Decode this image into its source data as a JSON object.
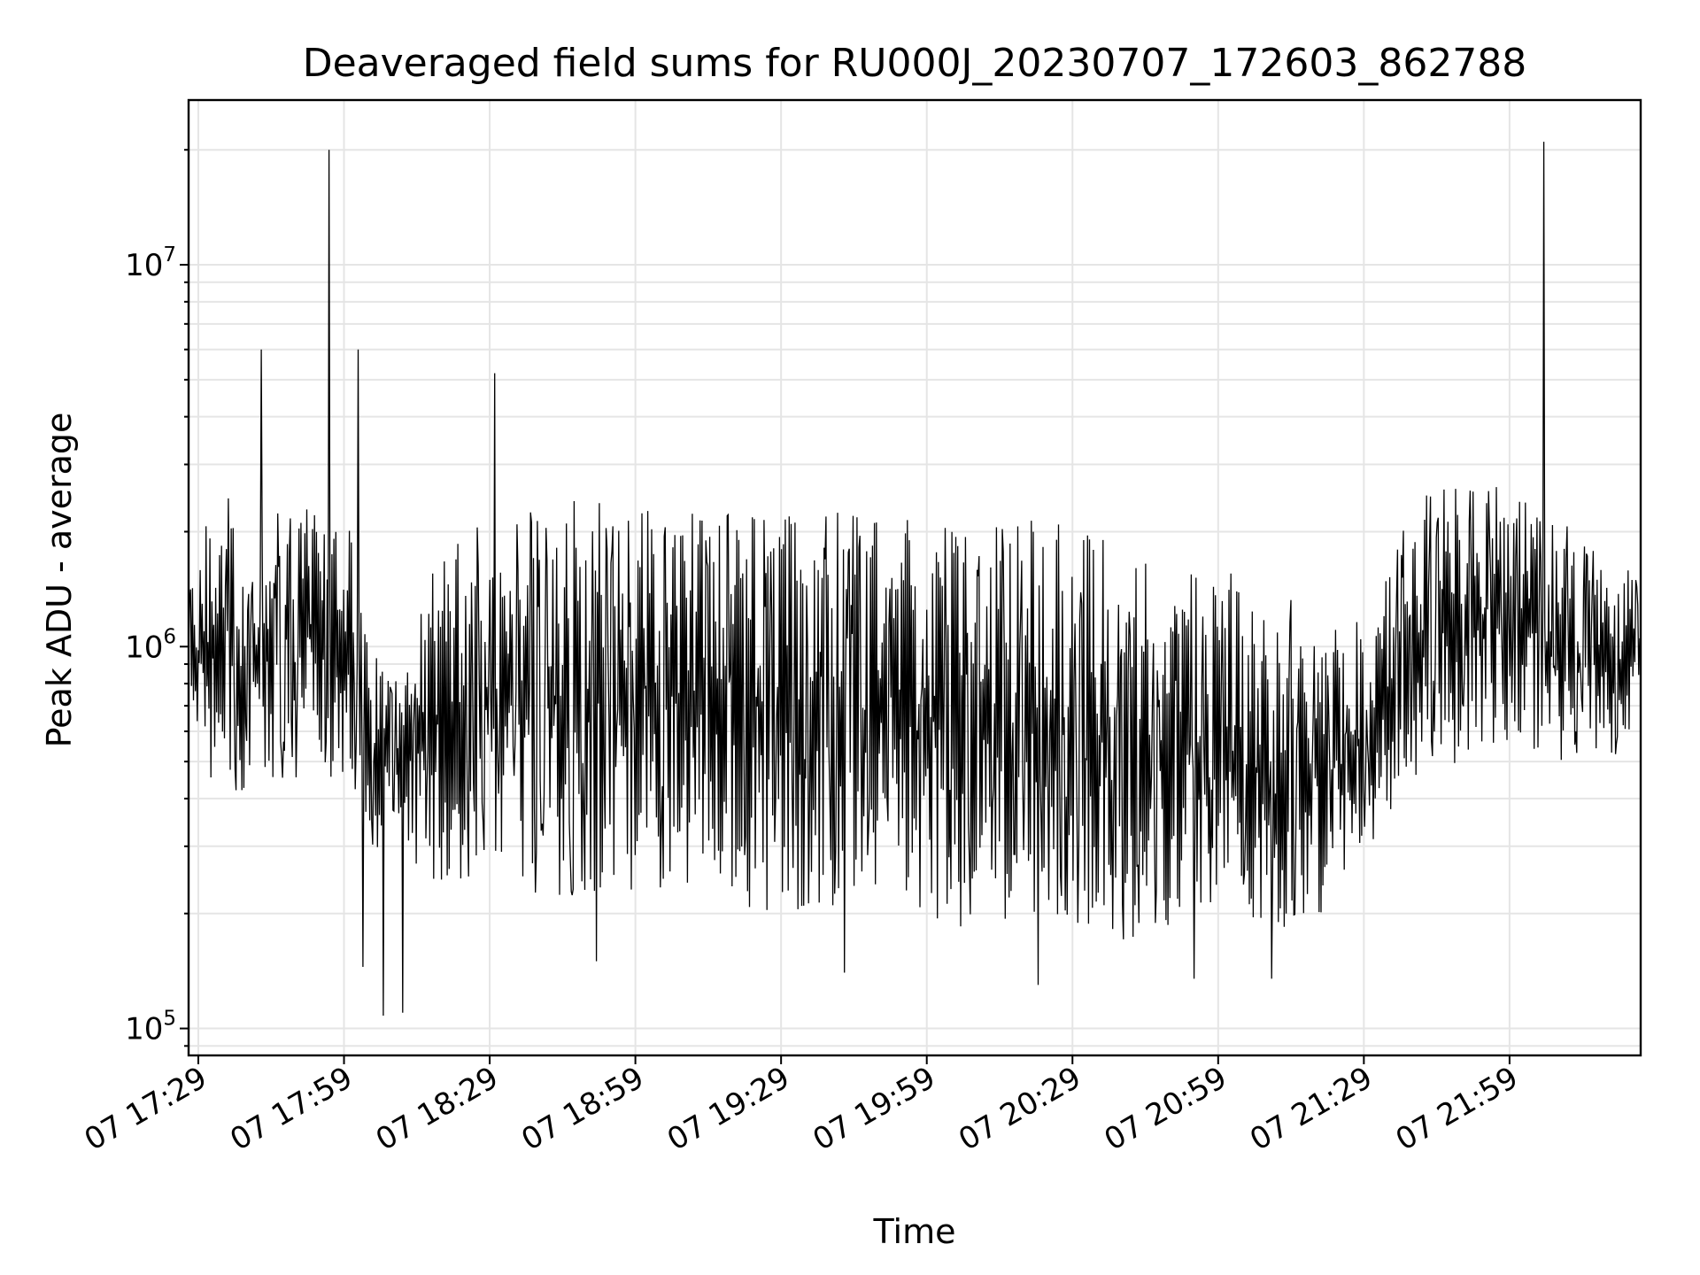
{
  "chart_data": {
    "type": "line",
    "title": "Deaveraged field sums for RU000J_20230707_172603_862788",
    "xlabel": "Time",
    "ylabel": "Peak ADU - average",
    "yscale": "log",
    "ylim": [
      85000,
      27000000
    ],
    "y_ticks": [
      {
        "value": 100000,
        "base": "10",
        "exp": "5"
      },
      {
        "value": 1000000,
        "base": "10",
        "exp": "6"
      },
      {
        "value": 10000000,
        "base": "10",
        "exp": "7"
      }
    ],
    "xlim": [
      "2023-07-07 17:27",
      "2023-07-07 22:26"
    ],
    "x_ticks": [
      {
        "value": "2023-07-07 17:29",
        "label": "07 17:29"
      },
      {
        "value": "2023-07-07 17:59",
        "label": "07 17:59"
      },
      {
        "value": "2023-07-07 18:29",
        "label": "07 18:29"
      },
      {
        "value": "2023-07-07 18:59",
        "label": "07 18:59"
      },
      {
        "value": "2023-07-07 19:29",
        "label": "07 19:29"
      },
      {
        "value": "2023-07-07 19:59",
        "label": "07 19:59"
      },
      {
        "value": "2023-07-07 20:29",
        "label": "07 20:29"
      },
      {
        "value": "2023-07-07 20:59",
        "label": "07 20:59"
      },
      {
        "value": "2023-07-07 21:29",
        "label": "07 21:29"
      },
      {
        "value": "2023-07-07 21:59",
        "label": "07 21:59"
      }
    ],
    "grid": true,
    "series": [
      {
        "color": "#000000",
        "envelope": [
          {
            "t": "2023-07-07 17:28",
            "low": 450000,
            "high": 2000000
          },
          {
            "t": "2023-07-07 17:35",
            "low": 420000,
            "high": 2500000
          },
          {
            "t": "2023-07-07 17:40",
            "low": 420000,
            "high": 1600000
          },
          {
            "t": "2023-07-07 17:45",
            "low": 450000,
            "high": 2400000
          },
          {
            "t": "2023-07-07 17:50",
            "low": 450000,
            "high": 2500000
          },
          {
            "t": "2023-07-07 17:55",
            "low": 450000,
            "high": 2600000
          },
          {
            "t": "2023-07-07 18:00",
            "low": 450000,
            "high": 2200000
          },
          {
            "t": "2023-07-07 18:05",
            "low": 300000,
            "high": 1000000
          },
          {
            "t": "2023-07-07 18:10",
            "low": 280000,
            "high": 900000
          },
          {
            "t": "2023-07-07 18:15",
            "low": 240000,
            "high": 1500000
          },
          {
            "t": "2023-07-07 18:20",
            "low": 240000,
            "high": 1800000
          },
          {
            "t": "2023-07-07 18:25",
            "low": 240000,
            "high": 2000000
          },
          {
            "t": "2023-07-07 18:30",
            "low": 240000,
            "high": 2200000
          },
          {
            "t": "2023-07-07 18:40",
            "low": 220000,
            "high": 2500000
          },
          {
            "t": "2023-07-07 18:50",
            "low": 220000,
            "high": 2500000
          },
          {
            "t": "2023-07-07 19:00",
            "low": 220000,
            "high": 2500000
          },
          {
            "t": "2023-07-07 19:10",
            "low": 210000,
            "high": 2500000
          },
          {
            "t": "2023-07-07 19:20",
            "low": 210000,
            "high": 2400000
          },
          {
            "t": "2023-07-07 19:30",
            "low": 200000,
            "high": 2300000
          },
          {
            "t": "2023-07-07 19:40",
            "low": 190000,
            "high": 2300000
          },
          {
            "t": "2023-07-07 19:50",
            "low": 190000,
            "high": 2200000
          },
          {
            "t": "2023-07-07 20:00",
            "low": 190000,
            "high": 2200000
          },
          {
            "t": "2023-07-07 20:10",
            "low": 180000,
            "high": 2300000
          },
          {
            "t": "2023-07-07 20:20",
            "low": 180000,
            "high": 2200000
          },
          {
            "t": "2023-07-07 20:30",
            "low": 180000,
            "high": 2200000
          },
          {
            "t": "2023-07-07 20:40",
            "low": 170000,
            "high": 1700000
          },
          {
            "t": "2023-07-07 20:50",
            "low": 170000,
            "high": 1700000
          },
          {
            "t": "2023-07-07 21:00",
            "low": 170000,
            "high": 1600000
          },
          {
            "t": "2023-07-07 21:10",
            "low": 170000,
            "high": 1500000
          },
          {
            "t": "2023-07-07 21:20",
            "low": 200000,
            "high": 1100000
          },
          {
            "t": "2023-07-07 21:30",
            "low": 300000,
            "high": 1200000
          },
          {
            "t": "2023-07-07 21:40",
            "low": 450000,
            "high": 2500000
          },
          {
            "t": "2023-07-07 21:50",
            "low": 500000,
            "high": 2800000
          },
          {
            "t": "2023-07-07 22:00",
            "low": 550000,
            "high": 2600000
          },
          {
            "t": "2023-07-07 22:10",
            "low": 500000,
            "high": 2200000
          },
          {
            "t": "2023-07-07 22:20",
            "low": 500000,
            "high": 1600000
          },
          {
            "t": "2023-07-07 22:26",
            "low": 600000,
            "high": 1700000
          }
        ],
        "peaks": [
          {
            "t": "2023-07-07 17:42",
            "value": 6000000
          },
          {
            "t": "2023-07-07 17:56",
            "value": 20000000
          },
          {
            "t": "2023-07-07 18:02",
            "value": 6000000
          },
          {
            "t": "2023-07-07 18:30",
            "value": 5200000
          },
          {
            "t": "2023-07-07 22:06",
            "value": 21000000
          }
        ],
        "dips": [
          {
            "t": "2023-07-07 18:03",
            "value": 145000
          },
          {
            "t": "2023-07-07 18:07",
            "value": 108000
          },
          {
            "t": "2023-07-07 18:11",
            "value": 110000
          },
          {
            "t": "2023-07-07 18:51",
            "value": 150000
          },
          {
            "t": "2023-07-07 19:42",
            "value": 140000
          },
          {
            "t": "2023-07-07 20:22",
            "value": 130000
          },
          {
            "t": "2023-07-07 20:54",
            "value": 135000
          },
          {
            "t": "2023-07-07 21:10",
            "value": 135000
          }
        ]
      }
    ]
  }
}
